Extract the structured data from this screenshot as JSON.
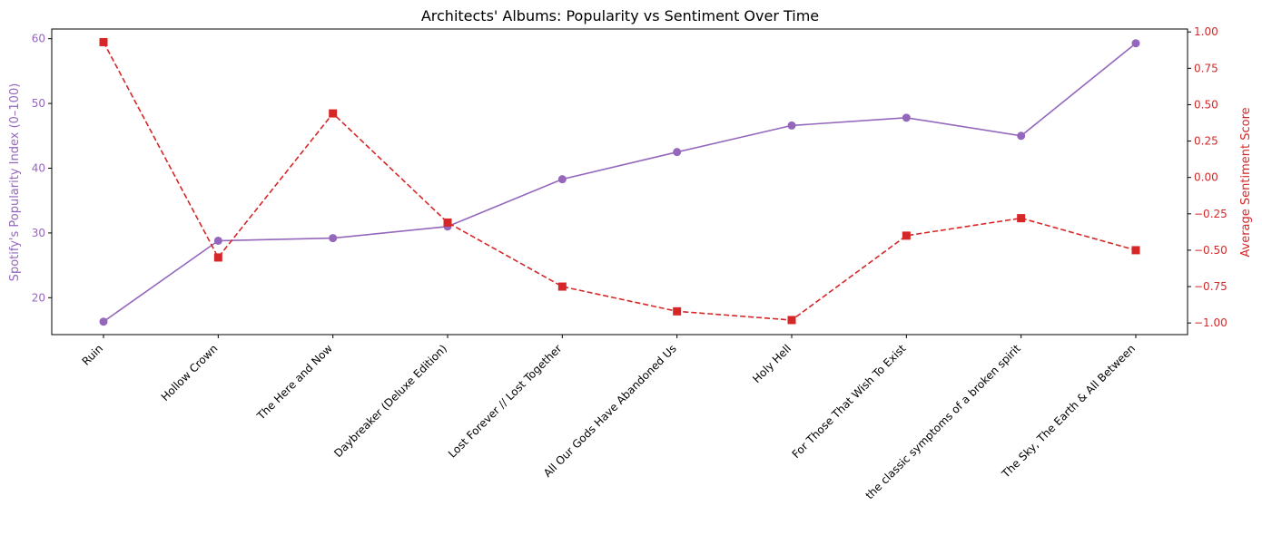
{
  "chart_data": {
    "type": "line",
    "title": "Architects' Albums: Popularity vs Sentiment Over Time",
    "categories": [
      "Ruin",
      "Hollow Crown",
      "The Here and Now",
      "Daybreaker (Deluxe Edition)",
      "Lost Forever // Lost Together",
      "All Our Gods Have Abandoned Us",
      "Holy Hell",
      "For Those That Wish To Exist",
      "the classic symptoms of a broken spirit",
      "The Sky, The Earth & All Between"
    ],
    "left_axis": {
      "label": "Spotify's Popularity Index (0–100)",
      "range": [
        14.3,
        61.5
      ],
      "ticks": [
        20,
        30,
        40,
        50,
        60
      ],
      "tick_labels": [
        "20",
        "30",
        "40",
        "50",
        "60"
      ],
      "color": "#9467bd"
    },
    "right_axis": {
      "label": "Average Sentiment Score",
      "range": [
        -1.08,
        1.02
      ],
      "ticks": [
        -1.0,
        -0.75,
        -0.5,
        -0.25,
        0.0,
        0.25,
        0.5,
        0.75,
        1.0
      ],
      "tick_labels": [
        "−1.00",
        "−0.75",
        "−0.50",
        "−0.25",
        "0.00",
        "0.25",
        "0.50",
        "0.75",
        "1.00"
      ],
      "color": "#d62728"
    },
    "series": [
      {
        "axis": "left",
        "values": [
          16.3,
          28.8,
          29.2,
          31.0,
          38.3,
          42.5,
          46.6,
          47.8,
          45.0,
          59.3
        ],
        "color": "#9467bd",
        "marker": "circle",
        "line_style": "solid"
      },
      {
        "axis": "right",
        "values": [
          0.93,
          -0.55,
          0.44,
          -0.31,
          -0.75,
          -0.92,
          -0.98,
          -0.4,
          -0.28,
          -0.5
        ],
        "color": "#d62728",
        "marker": "square",
        "line_style": "dashed"
      }
    ],
    "grid": false,
    "legend": "none"
  }
}
